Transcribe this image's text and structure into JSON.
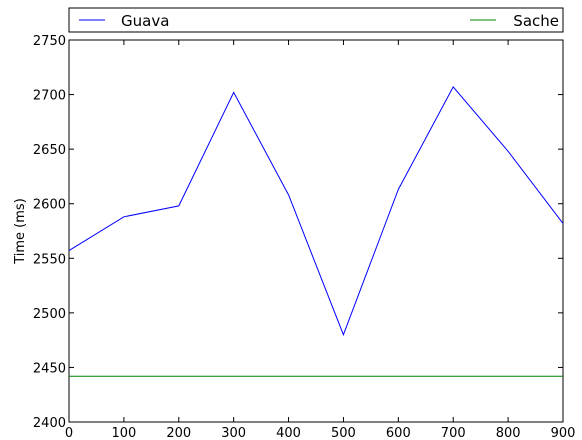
{
  "chart_data": {
    "type": "line",
    "title": "",
    "xlabel": "",
    "ylabel": "Time (ms)",
    "xlim": [
      0,
      900
    ],
    "ylim": [
      2400,
      2750
    ],
    "xticks": [
      "0",
      "100",
      "200",
      "300",
      "400",
      "500",
      "600",
      "700",
      "800",
      "900"
    ],
    "yticks": [
      "2400",
      "2450",
      "2500",
      "2550",
      "2600",
      "2650",
      "2700",
      "2750"
    ],
    "grid": false,
    "legend_placement": "top, above plot",
    "series": [
      {
        "name": "Guava",
        "color": "#0000ff",
        "x": [
          0,
          100,
          200,
          300,
          400,
          500,
          600,
          700,
          800,
          900
        ],
        "y": [
          2557,
          2588,
          2598,
          2702,
          2608,
          2480,
          2613,
          2707,
          2648,
          2582
        ]
      },
      {
        "name": "Sache",
        "color": "#008000",
        "x": [
          0,
          100,
          200,
          300,
          400,
          500,
          600,
          700,
          800,
          900
        ],
        "y": [
          2442,
          2442,
          2442,
          2442,
          2442,
          2442,
          2442,
          2442,
          2442,
          2442
        ]
      }
    ]
  }
}
